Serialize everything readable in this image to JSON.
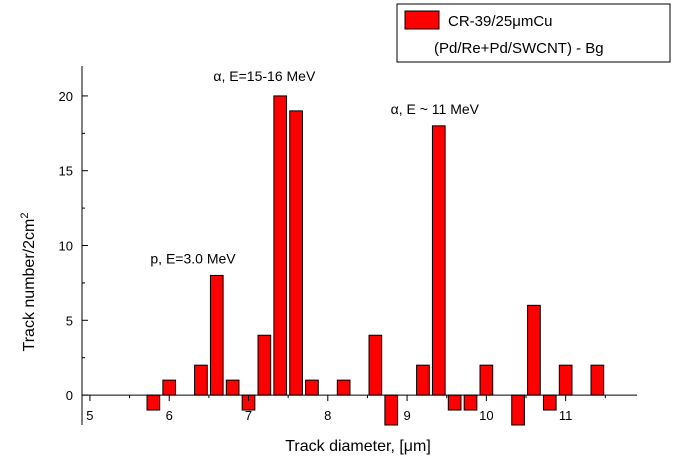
{
  "chart_data": {
    "type": "bar",
    "xlabel_prefix": "Track diameter, [",
    "xlabel_unit": "μm",
    "xlabel_suffix": "]",
    "ylabel_main": "Track number/2cm",
    "ylabel_sup": "2",
    "xlim": [
      4.9,
      11.9
    ],
    "ylim": [
      -2,
      22
    ],
    "x_ticks": [
      5,
      6,
      7,
      8,
      9,
      10,
      11
    ],
    "y_ticks": [
      0,
      5,
      10,
      15,
      20
    ],
    "bar_width": 0.16,
    "bar_color": "#ff0000",
    "series": [
      {
        "name_line1": "CR-39/25μmCu",
        "name_line2": "(Pd/Re+Pd/SWCNT) - Bg",
        "x": [
          5.8,
          6.0,
          6.4,
          6.6,
          6.8,
          7.0,
          7.2,
          7.4,
          7.6,
          7.8,
          8.2,
          8.6,
          8.8,
          9.2,
          9.4,
          9.6,
          9.8,
          10.0,
          10.4,
          10.6,
          10.8,
          11.0,
          11.4
        ],
        "values": [
          -1,
          1,
          2,
          8,
          1,
          -1,
          4,
          20,
          19,
          1,
          1,
          4,
          -2,
          2,
          18,
          -1,
          -1,
          2,
          -2,
          6,
          -1,
          2,
          2
        ]
      }
    ],
    "annotations": [
      {
        "text": "α, E=15-16 MeV",
        "x": 7.2,
        "y": 21
      },
      {
        "text": "α, E ~ 11 MeV",
        "x": 9.35,
        "y": 18.8
      },
      {
        "text": "p, E=3.0 MeV",
        "x": 6.3,
        "y": 8.8
      }
    ],
    "legend_position": "top-right",
    "grid": false
  }
}
